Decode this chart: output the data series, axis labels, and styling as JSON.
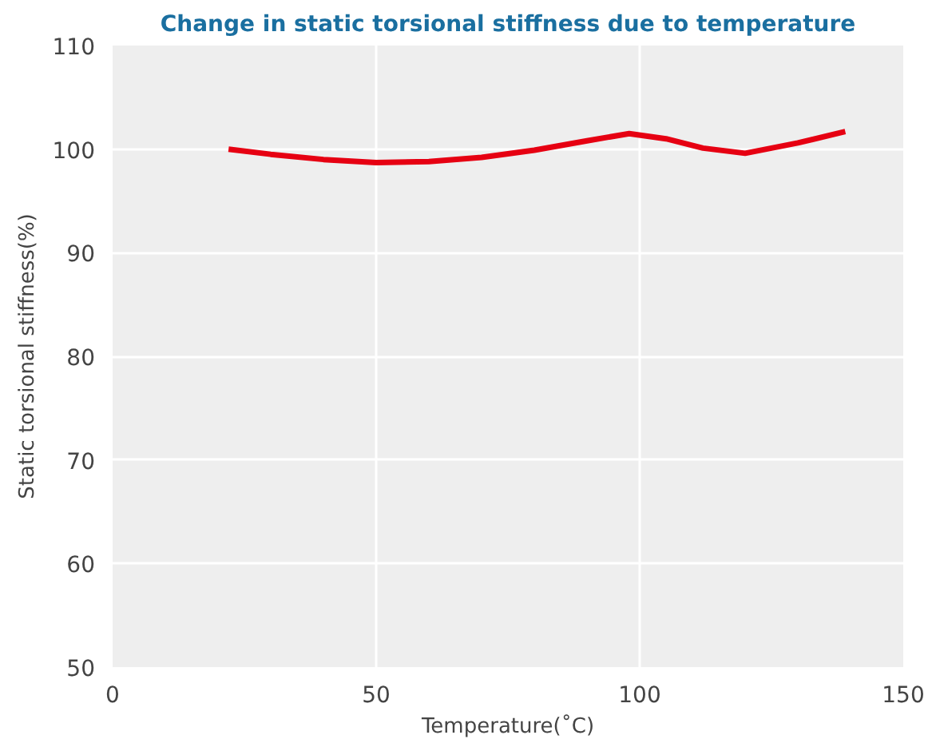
{
  "chart_data": {
    "type": "line",
    "title": "Change in static torsional stiffness due to temperature",
    "xlabel": "Temperature(˚C)",
    "ylabel": "Static torsional stiffness(%)",
    "x": [
      22,
      30,
      40,
      50,
      60,
      70,
      80,
      90,
      98,
      105,
      112,
      120,
      130,
      139
    ],
    "series": [
      {
        "color": "#e60012",
        "values": [
          100.0,
          99.5,
          99.0,
          98.7,
          98.8,
          99.2,
          99.9,
          100.8,
          101.5,
          101.0,
          100.1,
          99.6,
          100.6,
          101.7
        ]
      }
    ],
    "xlim": [
      0,
      150
    ],
    "ylim": [
      50,
      110
    ],
    "xticks": [
      0,
      50,
      100,
      150
    ],
    "yticks": [
      50,
      60,
      70,
      80,
      90,
      100,
      110
    ],
    "grid": true,
    "marker": "none",
    "line_style": "solid"
  }
}
